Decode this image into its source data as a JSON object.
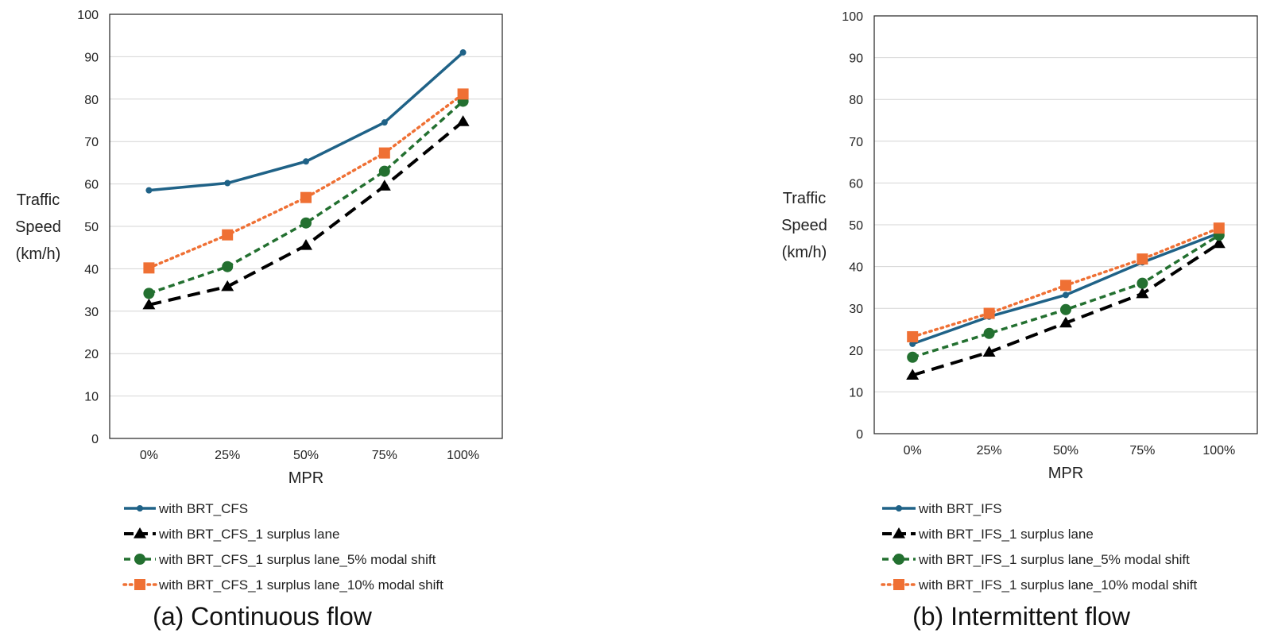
{
  "chart_data": [
    {
      "type": "line",
      "caption": "(a) Continuous flow",
      "categories": [
        "0%",
        "25%",
        "50%",
        "75%",
        "100%"
      ],
      "xlabel": "MPR",
      "ylabel_lines": [
        "Traffic",
        "Speed",
        "(km/h)"
      ],
      "ylim": [
        0,
        100
      ],
      "yticks": [
        0,
        10,
        20,
        30,
        40,
        50,
        60,
        70,
        80,
        90,
        100
      ],
      "grid": true,
      "legend_position": "bottom",
      "series": [
        {
          "name": "with BRT_CFS",
          "values": [
            58.5,
            60.2,
            65.3,
            74.5,
            91
          ],
          "color": "#1f6287",
          "marker": "circle-small",
          "dash": "solid"
        },
        {
          "name": "with BRT_CFS_1 surplus lane",
          "values": [
            31.5,
            35.8,
            45.5,
            59.5,
            74.7
          ],
          "color": "#000000",
          "marker": "triangle",
          "dash": "long-dash"
        },
        {
          "name": "with BRT_CFS_1 surplus lane_5% modal shift",
          "values": [
            34.2,
            40.5,
            50.8,
            63,
            79.5
          ],
          "color": "#237030",
          "marker": "circle",
          "dash": "dash"
        },
        {
          "name": "with BRT_CFS_1 surplus lane_10% modal shift",
          "values": [
            40.2,
            48,
            56.8,
            67.3,
            81.2
          ],
          "color": "#ef7034",
          "marker": "square",
          "dash": "dot"
        }
      ]
    },
    {
      "type": "line",
      "caption": "(b) Intermittent flow",
      "categories": [
        "0%",
        "25%",
        "50%",
        "75%",
        "100%"
      ],
      "xlabel": "MPR",
      "ylabel_lines": [
        "Traffic",
        "Speed",
        "(km/h)"
      ],
      "ylim": [
        0,
        100
      ],
      "yticks": [
        0,
        10,
        20,
        30,
        40,
        50,
        60,
        70,
        80,
        90,
        100
      ],
      "grid": true,
      "legend_position": "bottom",
      "series": [
        {
          "name": "with BRT_IFS",
          "values": [
            21.5,
            28,
            33.2,
            41,
            48
          ],
          "color": "#1f6287",
          "marker": "circle-small",
          "dash": "solid"
        },
        {
          "name": "with BRT_IFS_1 surplus lane",
          "values": [
            14,
            19.5,
            26.5,
            33.5,
            45.5
          ],
          "color": "#000000",
          "marker": "triangle",
          "dash": "long-dash"
        },
        {
          "name": "with BRT_IFS_1 surplus lane_5% modal shift",
          "values": [
            18.3,
            24,
            29.7,
            36,
            47.5
          ],
          "color": "#237030",
          "marker": "circle",
          "dash": "dash"
        },
        {
          "name": "with BRT_IFS_1 surplus lane_10% modal shift",
          "values": [
            23.2,
            28.8,
            35.5,
            41.8,
            49.2
          ],
          "color": "#ef7034",
          "marker": "square",
          "dash": "dot"
        }
      ]
    }
  ]
}
